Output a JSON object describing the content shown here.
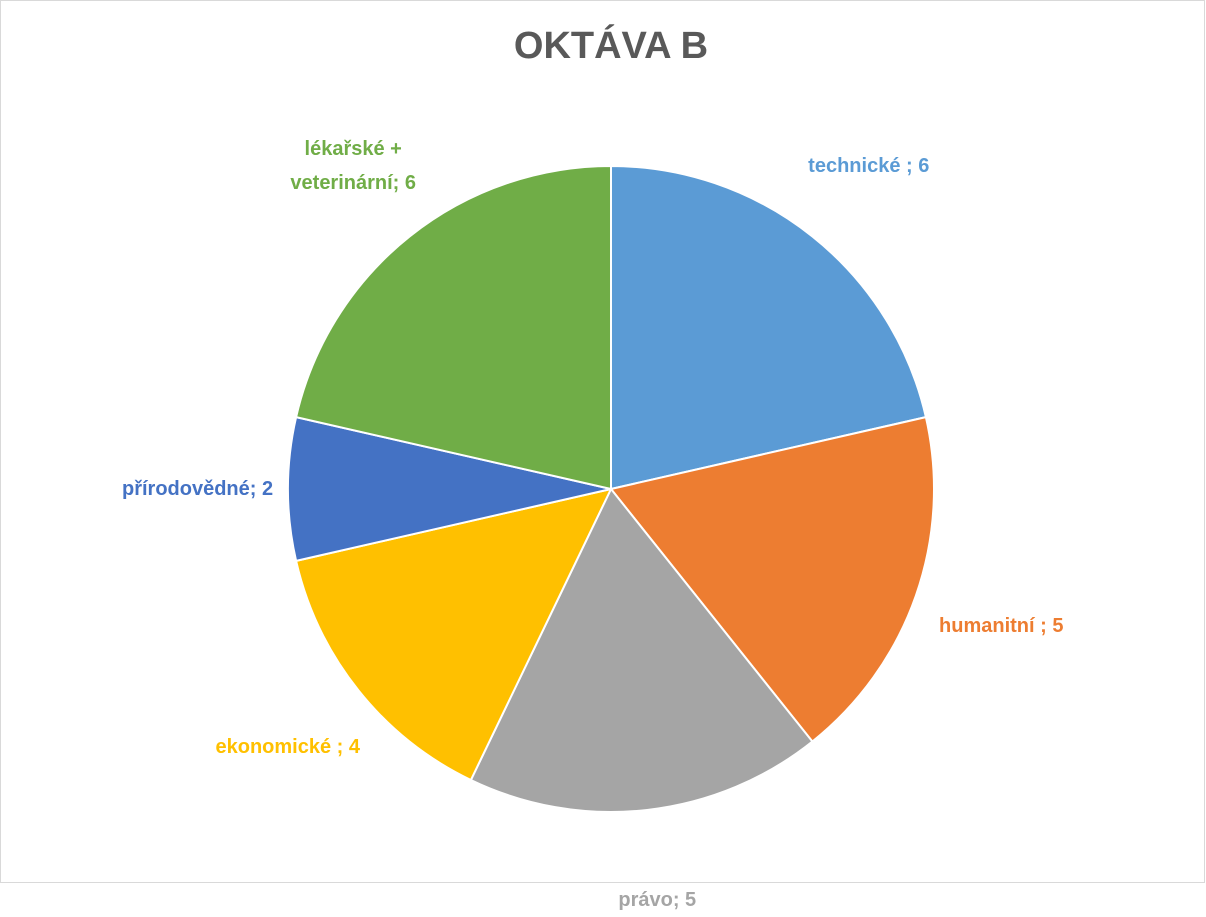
{
  "chart_data": {
    "type": "pie",
    "title": "OKTÁVA B",
    "values": [
      6,
      5,
      5,
      4,
      2,
      6
    ],
    "value_labels": [
      "technické ; 6",
      "humanitní ; 5",
      "právo; 5",
      "ekonomické ; 4",
      "přírodovědné; 2",
      "lékařské + veterinární; 6"
    ],
    "colors": [
      "#5b9bd5",
      "#ed7d31",
      "#a5a5a5",
      "#ffc000",
      "#4472c4",
      "#70ad47"
    ]
  }
}
